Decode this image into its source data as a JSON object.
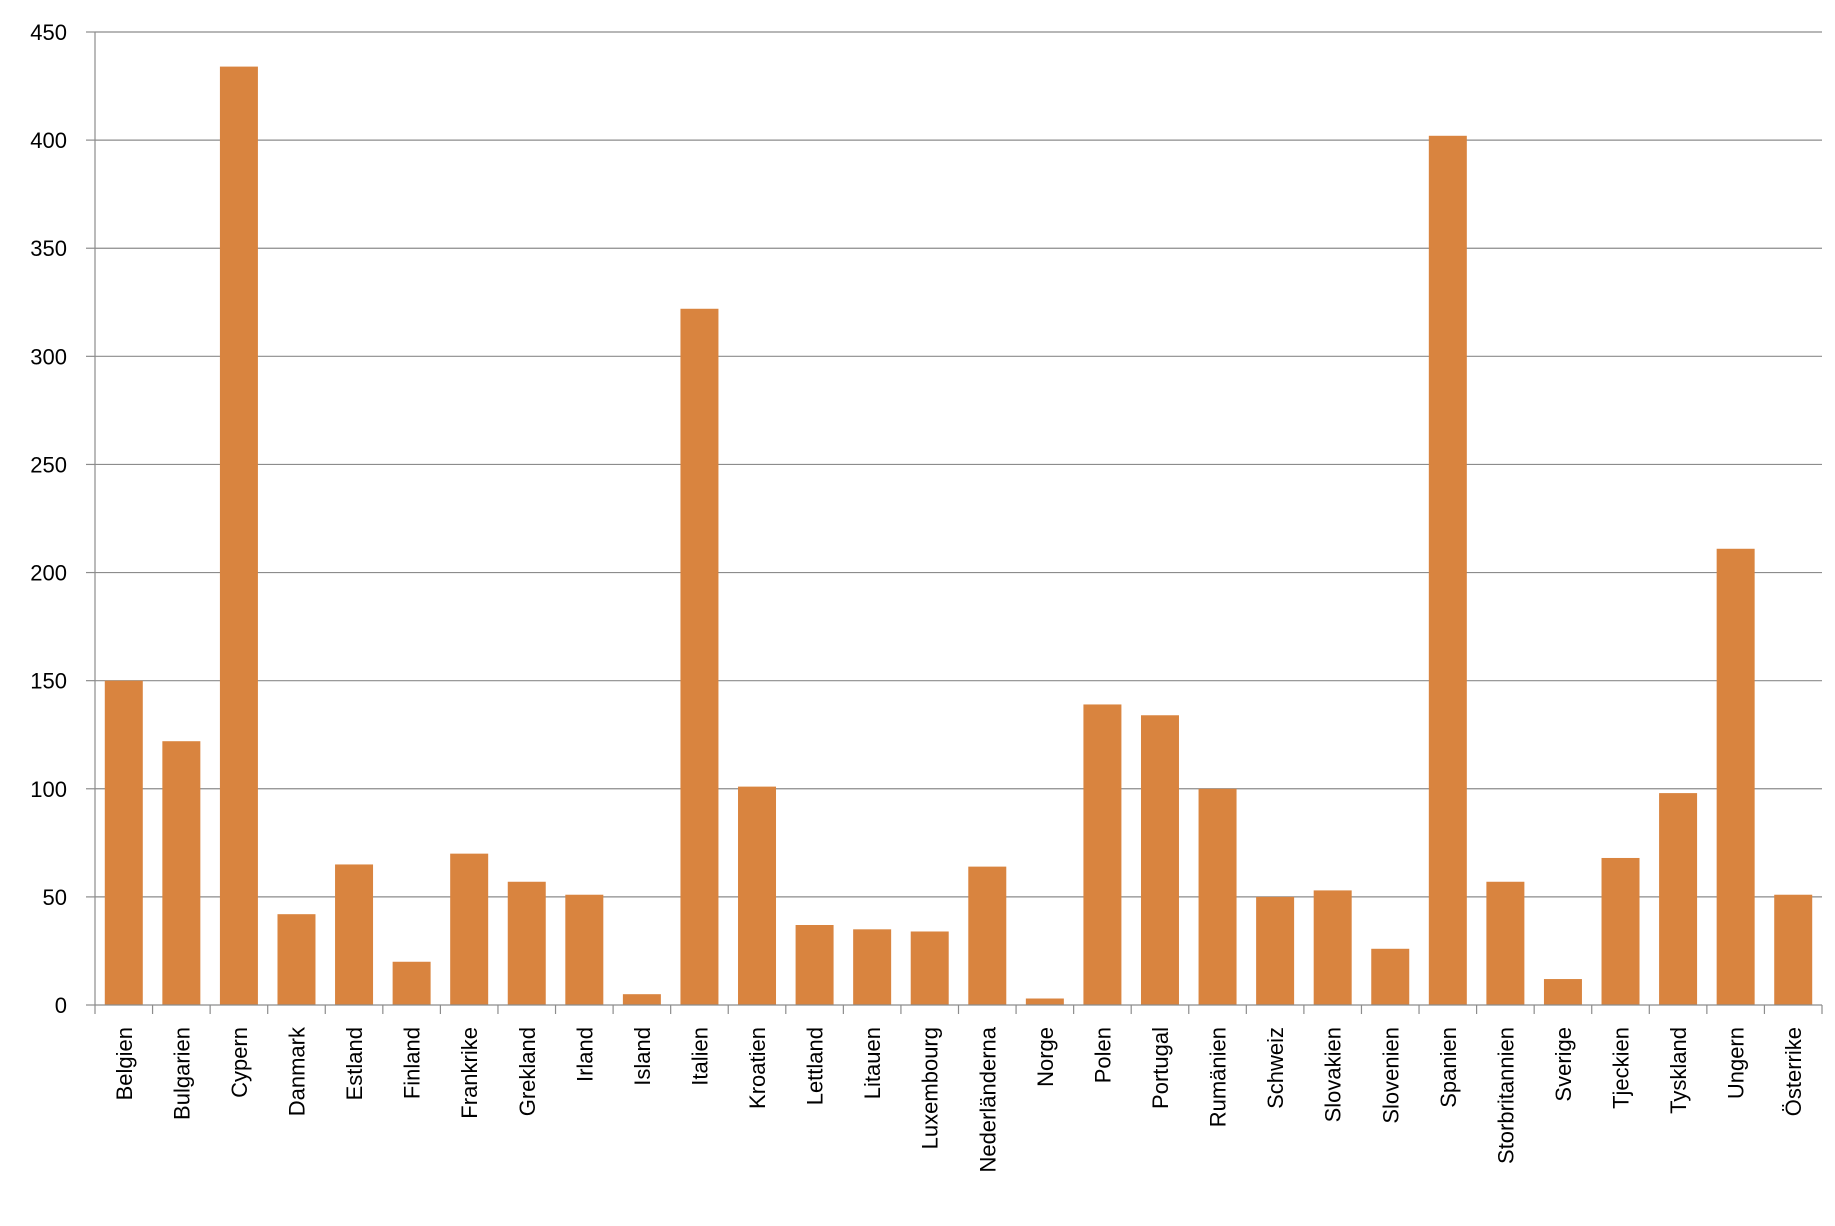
{
  "chart_data": {
    "type": "bar",
    "title": "",
    "xlabel": "",
    "ylabel": "",
    "ylim": [
      0,
      450
    ],
    "yticks": [
      0,
      50,
      100,
      150,
      200,
      250,
      300,
      350,
      400,
      450
    ],
    "grid": true,
    "legend": "none",
    "bar_color": "#D9843F",
    "grid_color": "#8C8C8C",
    "categories": [
      "Belgien",
      "Bulgarien",
      "Cypern",
      "Danmark",
      "Estland",
      "Finland",
      "Frankrike",
      "Grekland",
      "Irland",
      "Island",
      "Italien",
      "Kroatien",
      "Lettland",
      "Litauen",
      "Luxembourg",
      "Nederländerna",
      "Norge",
      "Polen",
      "Portugal",
      "Rumänien",
      "Schweiz",
      "Slovakien",
      "Slovenien",
      "Spanien",
      "Storbritannien",
      "Sverige",
      "Tjeckien",
      "Tyskland",
      "Ungern",
      "Österrike"
    ],
    "values": [
      150,
      122,
      434,
      42,
      65,
      20,
      70,
      57,
      51,
      5,
      322,
      101,
      37,
      35,
      34,
      64,
      3,
      139,
      134,
      100,
      50,
      53,
      26,
      402,
      57,
      12,
      68,
      98,
      211,
      51
    ]
  }
}
